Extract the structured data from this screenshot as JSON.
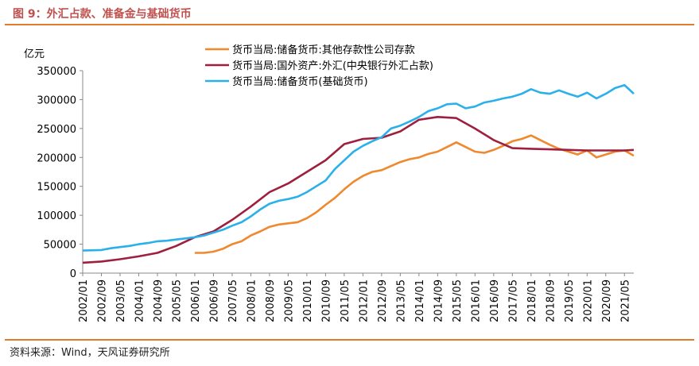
{
  "title": "图 9：外汇占款、准备金与基础货币",
  "source": "资料来源：Wind，天风证券研究所",
  "colors": {
    "accent": "#e07b2c",
    "title": "#c0504d",
    "series_orange": "#f0882e",
    "series_red": "#9e1f3e",
    "series_blue": "#2ab0ea"
  },
  "chart_data": {
    "type": "line",
    "ylabel": "亿元",
    "ylim": [
      0,
      350000
    ],
    "yticks": [
      0,
      50000,
      100000,
      150000,
      200000,
      250000,
      300000,
      350000
    ],
    "ytick_labels": [
      "0",
      "50000",
      "100000",
      "150000",
      "200000",
      "250000",
      "300000",
      "350000"
    ],
    "xlim": [
      "2002/01",
      "2021/09"
    ],
    "xtick_labels": [
      "2002/01",
      "2002/09",
      "2003/05",
      "2004/01",
      "2004/09",
      "2005/05",
      "2006/01",
      "2006/09",
      "2007/05",
      "2008/01",
      "2008/09",
      "2009/05",
      "2010/01",
      "2010/09",
      "2011/05",
      "2012/01",
      "2012/09",
      "2013/05",
      "2014/01",
      "2014/09",
      "2015/05",
      "2016/01",
      "2016/09",
      "2017/05",
      "2018/01",
      "2018/09",
      "2019/05",
      "2020/01",
      "2020/09",
      "2021/05"
    ],
    "legend_position": "top-center",
    "series": [
      {
        "name": "货币当局:储备货币:其他存款性公司存款",
        "color": "#f0882e",
        "points": [
          [
            "2006/01",
            35000
          ],
          [
            "2006/05",
            35000
          ],
          [
            "2006/09",
            37000
          ],
          [
            "2007/01",
            42000
          ],
          [
            "2007/05",
            50000
          ],
          [
            "2007/09",
            55000
          ],
          [
            "2008/01",
            65000
          ],
          [
            "2008/05",
            72000
          ],
          [
            "2008/09",
            80000
          ],
          [
            "2009/01",
            84000
          ],
          [
            "2009/05",
            86000
          ],
          [
            "2009/09",
            88000
          ],
          [
            "2010/01",
            95000
          ],
          [
            "2010/05",
            105000
          ],
          [
            "2010/09",
            118000
          ],
          [
            "2011/01",
            130000
          ],
          [
            "2011/05",
            145000
          ],
          [
            "2011/09",
            158000
          ],
          [
            "2012/01",
            168000
          ],
          [
            "2012/05",
            175000
          ],
          [
            "2012/09",
            178000
          ],
          [
            "2013/01",
            185000
          ],
          [
            "2013/05",
            192000
          ],
          [
            "2013/09",
            197000
          ],
          [
            "2014/01",
            200000
          ],
          [
            "2014/05",
            206000
          ],
          [
            "2014/09",
            210000
          ],
          [
            "2015/01",
            218000
          ],
          [
            "2015/05",
            226000
          ],
          [
            "2015/09",
            218000
          ],
          [
            "2016/01",
            210000
          ],
          [
            "2016/05",
            208000
          ],
          [
            "2016/09",
            213000
          ],
          [
            "2017/01",
            220000
          ],
          [
            "2017/05",
            228000
          ],
          [
            "2017/09",
            232000
          ],
          [
            "2018/01",
            238000
          ],
          [
            "2018/05",
            230000
          ],
          [
            "2018/09",
            222000
          ],
          [
            "2019/01",
            215000
          ],
          [
            "2019/05",
            210000
          ],
          [
            "2019/09",
            205000
          ],
          [
            "2020/01",
            212000
          ],
          [
            "2020/05",
            200000
          ],
          [
            "2020/09",
            205000
          ],
          [
            "2021/01",
            210000
          ],
          [
            "2021/05",
            212000
          ],
          [
            "2021/09",
            203000
          ]
        ]
      },
      {
        "name": "货币当局:国外资产:外汇(中央银行外汇占款)",
        "color": "#9e1f3e",
        "points": [
          [
            "2002/01",
            18000
          ],
          [
            "2002/09",
            20000
          ],
          [
            "2003/05",
            24000
          ],
          [
            "2004/01",
            29000
          ],
          [
            "2004/09",
            35000
          ],
          [
            "2005/05",
            47000
          ],
          [
            "2006/01",
            62000
          ],
          [
            "2006/09",
            72000
          ],
          [
            "2007/05",
            92000
          ],
          [
            "2008/01",
            115000
          ],
          [
            "2008/09",
            140000
          ],
          [
            "2009/05",
            155000
          ],
          [
            "2010/01",
            175000
          ],
          [
            "2010/09",
            195000
          ],
          [
            "2011/05",
            223000
          ],
          [
            "2012/01",
            232000
          ],
          [
            "2012/09",
            234000
          ],
          [
            "2013/05",
            245000
          ],
          [
            "2014/01",
            265000
          ],
          [
            "2014/09",
            270000
          ],
          [
            "2015/05",
            268000
          ],
          [
            "2016/01",
            250000
          ],
          [
            "2016/09",
            230000
          ],
          [
            "2017/05",
            216000
          ],
          [
            "2018/01",
            215000
          ],
          [
            "2018/09",
            214000
          ],
          [
            "2019/05",
            213000
          ],
          [
            "2020/01",
            212000
          ],
          [
            "2020/09",
            212000
          ],
          [
            "2021/05",
            212000
          ],
          [
            "2021/09",
            213000
          ]
        ]
      },
      {
        "name": "货币当局:储备货币(基础货币)",
        "color": "#2ab0ea",
        "points": [
          [
            "2002/01",
            39000
          ],
          [
            "2002/09",
            40000
          ],
          [
            "2003/01",
            43000
          ],
          [
            "2003/05",
            45000
          ],
          [
            "2003/09",
            47000
          ],
          [
            "2004/01",
            50000
          ],
          [
            "2004/05",
            52000
          ],
          [
            "2004/09",
            55000
          ],
          [
            "2005/01",
            56000
          ],
          [
            "2005/05",
            58000
          ],
          [
            "2005/09",
            60000
          ],
          [
            "2006/01",
            62000
          ],
          [
            "2006/05",
            65000
          ],
          [
            "2006/09",
            70000
          ],
          [
            "2007/01",
            75000
          ],
          [
            "2007/05",
            82000
          ],
          [
            "2007/09",
            88000
          ],
          [
            "2008/01",
            98000
          ],
          [
            "2008/05",
            110000
          ],
          [
            "2008/09",
            120000
          ],
          [
            "2009/01",
            125000
          ],
          [
            "2009/05",
            128000
          ],
          [
            "2009/09",
            132000
          ],
          [
            "2010/01",
            140000
          ],
          [
            "2010/05",
            150000
          ],
          [
            "2010/09",
            160000
          ],
          [
            "2011/01",
            180000
          ],
          [
            "2011/05",
            195000
          ],
          [
            "2011/09",
            210000
          ],
          [
            "2012/01",
            220000
          ],
          [
            "2012/05",
            228000
          ],
          [
            "2012/09",
            235000
          ],
          [
            "2013/01",
            250000
          ],
          [
            "2013/05",
            255000
          ],
          [
            "2013/09",
            262000
          ],
          [
            "2014/01",
            270000
          ],
          [
            "2014/05",
            280000
          ],
          [
            "2014/09",
            285000
          ],
          [
            "2015/01",
            292000
          ],
          [
            "2015/05",
            293000
          ],
          [
            "2015/09",
            285000
          ],
          [
            "2016/01",
            288000
          ],
          [
            "2016/05",
            295000
          ],
          [
            "2016/09",
            298000
          ],
          [
            "2017/01",
            302000
          ],
          [
            "2017/05",
            305000
          ],
          [
            "2017/09",
            310000
          ],
          [
            "2018/01",
            318000
          ],
          [
            "2018/05",
            312000
          ],
          [
            "2018/09",
            310000
          ],
          [
            "2019/01",
            316000
          ],
          [
            "2019/05",
            310000
          ],
          [
            "2019/09",
            305000
          ],
          [
            "2020/01",
            312000
          ],
          [
            "2020/05",
            302000
          ],
          [
            "2020/09",
            310000
          ],
          [
            "2021/01",
            320000
          ],
          [
            "2021/05",
            325000
          ],
          [
            "2021/09",
            310000
          ]
        ]
      }
    ]
  }
}
